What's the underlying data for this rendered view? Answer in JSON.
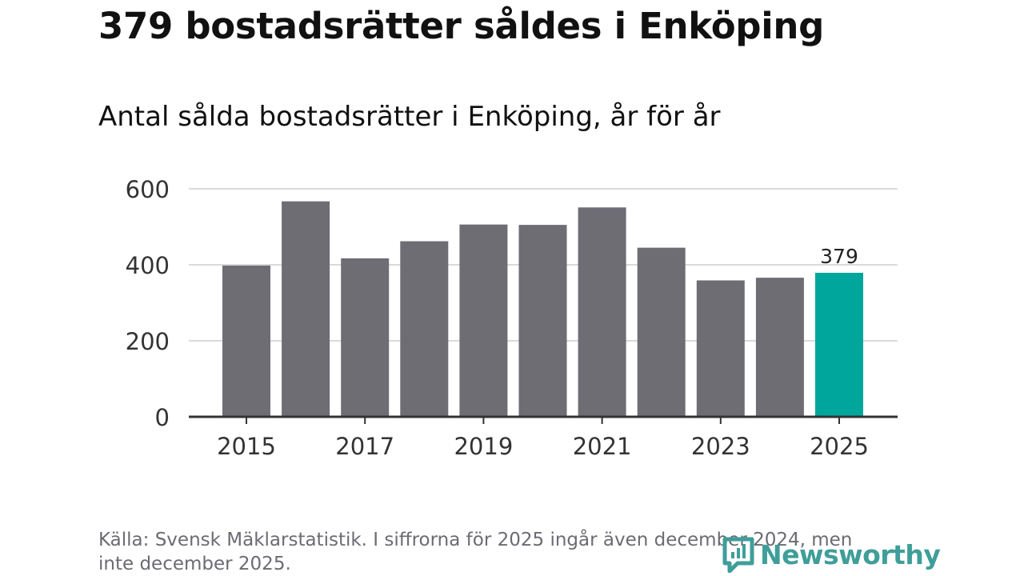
{
  "header": {
    "title": "379 bostadsrätter såldes i Enköping",
    "subtitle": "Antal sålda bostadsrätter i Enköping, år för år"
  },
  "chart_data": {
    "type": "bar",
    "categories": [
      "2015",
      "2016",
      "2017",
      "2018",
      "2019",
      "2020",
      "2021",
      "2022",
      "2023",
      "2024",
      "2025"
    ],
    "values": [
      398,
      567,
      417,
      462,
      506,
      505,
      551,
      445,
      359,
      366,
      379
    ],
    "x_tick_labels": [
      "2015",
      "2017",
      "2019",
      "2021",
      "2023",
      "2025"
    ],
    "y_ticks": [
      0,
      200,
      400,
      600
    ],
    "ylim": [
      0,
      600
    ],
    "highlight_index": 10,
    "highlight_label": "379",
    "bar_color": "#6e6d74",
    "highlight_color": "#00a69c",
    "grid": true,
    "xlabel": "",
    "ylabel": ""
  },
  "footer": {
    "source": "Källa: Svensk Mäklarstatistik. I siffrorna för 2025 ingår även december 2024, men inte december 2025.",
    "logo_text": "Newsworthy",
    "logo_color": "#3f9e99"
  }
}
